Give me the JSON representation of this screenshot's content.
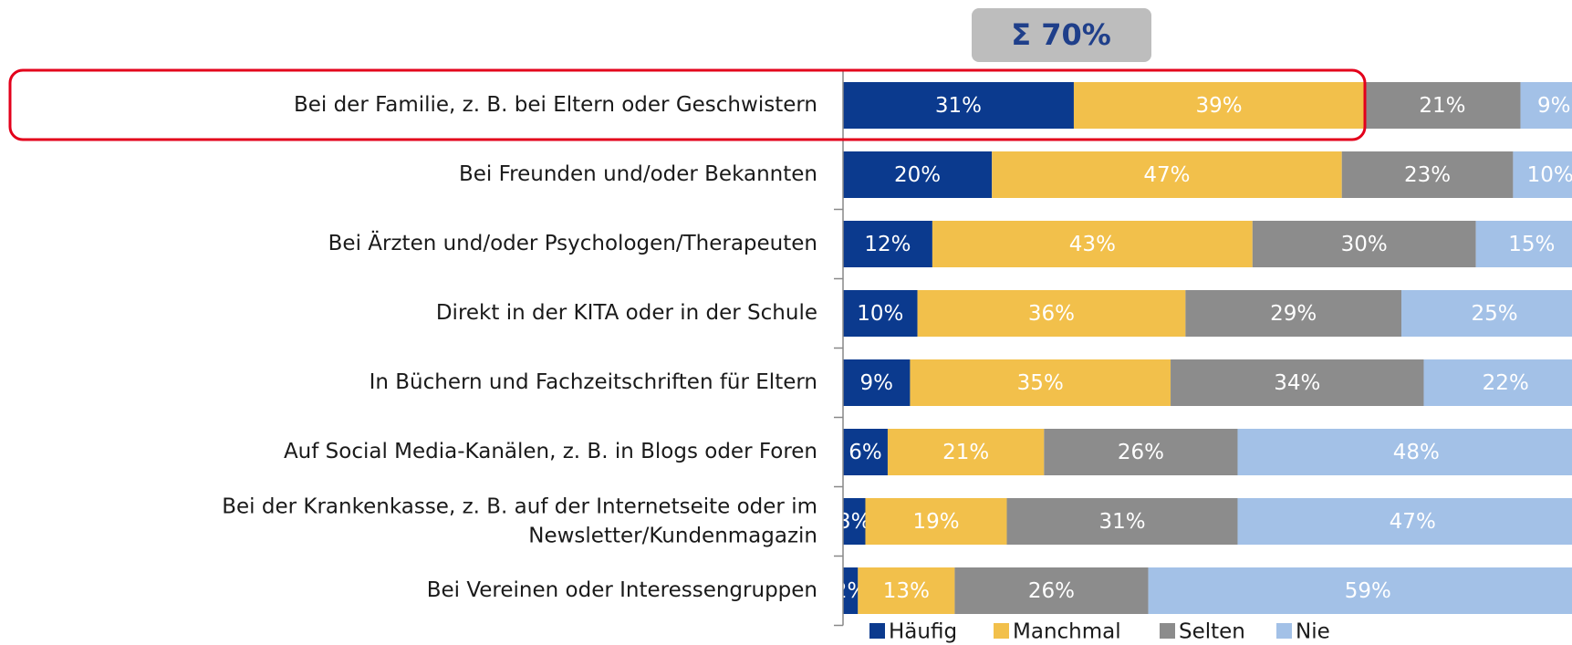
{
  "chart_data": {
    "type": "stacked-bar-horizontal",
    "annotation": "Σ 70%",
    "categories": [
      "Bei der Familie, z. B. bei Eltern oder Geschwistern",
      "Bei Freunden und/oder Bekannten",
      "Bei Ärzten und/oder Psychologen/Therapeuten",
      "Direkt in der KITA oder in der Schule",
      "In Büchern und Fachzeitschriften für Eltern",
      "Auf Social Media-Kanälen, z. B. in Blogs oder Foren",
      "Bei der Krankenkasse, z. B. auf der Internetseite oder im\nNewsletter/Kundenmagazin",
      "Bei Vereinen oder Interessengruppen"
    ],
    "series": [
      {
        "name": "Häufig",
        "color": "#0b3a8e",
        "values": [
          31,
          20,
          12,
          10,
          9,
          6,
          3,
          2
        ],
        "value_labels": [
          "31%",
          "20%",
          "12%",
          "10%",
          "9%",
          "6%",
          "3%",
          "2%"
        ]
      },
      {
        "name": "Manchmal",
        "color": "#f2c04b",
        "values": [
          39,
          47,
          43,
          36,
          35,
          21,
          19,
          13
        ],
        "value_labels": [
          "39%",
          "47%",
          "43%",
          "36%",
          "35%",
          "21%",
          "19%",
          "13%"
        ]
      },
      {
        "name": "Selten",
        "color": "#8c8c8c",
        "values": [
          21,
          23,
          30,
          29,
          34,
          26,
          31,
          26
        ],
        "value_labels": [
          "21%",
          "23%",
          "30%",
          "29%",
          "34%",
          "26%",
          "31%",
          "26%"
        ]
      },
      {
        "name": "Nie",
        "color": "#a3c1e7",
        "values": [
          9,
          10,
          15,
          25,
          22,
          48,
          47,
          59
        ],
        "value_labels": [
          "9%",
          "10%",
          "15%",
          "25%",
          "22%",
          "48%",
          "47%",
          "59%"
        ]
      }
    ],
    "legend": "bottom"
  }
}
